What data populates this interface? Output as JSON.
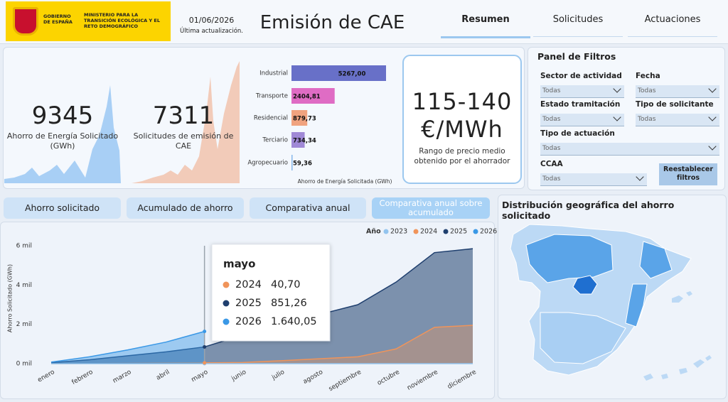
{
  "header": {
    "logo": {
      "government": "GOBIERNO DE ESPAÑA",
      "ministry": "MINISTERIO PARA LA TRANSICIÓN ECOLÓGICA Y EL RETO DEMOGRÁFICO"
    },
    "date": "01/06/2026",
    "date_caption": "Última actualización.",
    "title": "Emisión de CAE",
    "tabs": [
      "Resumen",
      "Solicitudes",
      "Actuaciones"
    ]
  },
  "kpis": [
    {
      "value": 9345,
      "label": "Ahorro de Energía Solicitado (GWh)"
    },
    {
      "value": 7311,
      "label": "Solicitudes de emisión de CAE"
    }
  ],
  "sector_chart": {
    "type": "bar",
    "orientation": "horizontal",
    "categories": [
      "Industrial",
      "Transporte",
      "Residencial",
      "Terciario",
      "Agropecuario"
    ],
    "values": [
      5267.0,
      2404.81,
      879.73,
      734.34,
      59.36
    ],
    "value_labels": [
      "5267,00",
      "2404,81",
      "879,73",
      "734,34",
      "59,36"
    ],
    "colors": [
      "#6870c8",
      "#df6cc4",
      "#f0a37f",
      "#a089d6",
      "#86b8ea"
    ],
    "x_label": "Ahorro de Energía Solicitada (GWh)"
  },
  "price_card": {
    "value": "115-140 €/MWh",
    "caption": "Rango de precio medio obtenido por el ahorrador"
  },
  "filters": {
    "title": "Panel de Filtros",
    "fields": [
      {
        "label": "Sector de actividad",
        "value": "Todas"
      },
      {
        "label": "Fecha",
        "value": "Todas"
      },
      {
        "label": "Estado tramitación",
        "value": "Todas"
      },
      {
        "label": "Tipo de solicitante",
        "value": "Todas"
      },
      {
        "label": "Tipo de actuación",
        "value": "Todas"
      },
      {
        "label": "CCAA",
        "value": "Todas"
      }
    ],
    "reset_button": "Reestablecer filtros"
  },
  "chart_tabs": [
    "Ahorro solicitado",
    "Acumulado de ahorro",
    "Comparativa anual",
    "Comparativa anual sobre acumulado"
  ],
  "savings_chart": {
    "type": "area",
    "y_label": "Ahorro Solicitado (GWh)",
    "legend_title": "Año",
    "categories": [
      "enero",
      "febrero",
      "marzo",
      "abril",
      "mayo",
      "junio",
      "julio",
      "agosto",
      "septiembre",
      "octubre",
      "noviembre",
      "diciembre"
    ],
    "series": [
      {
        "name": "2023",
        "color": "#93c4ee",
        "values": [
          0,
          0,
          0,
          0,
          0,
          0,
          0,
          0,
          0,
          0,
          0,
          0
        ]
      },
      {
        "name": "2024",
        "color": "#f0945a",
        "values": [
          0,
          10,
          20,
          30,
          40.7,
          60,
          150,
          250,
          350,
          750,
          1850,
          1950
        ]
      },
      {
        "name": "2025",
        "color": "#1f3f6e",
        "values": [
          50,
          200,
          400,
          600,
          851.26,
          1450,
          2000,
          2500,
          3000,
          4150,
          5650,
          5850
        ]
      },
      {
        "name": "2026",
        "color": "#3a98e6",
        "values": [
          80,
          350,
          700,
          1100,
          1640.05,
          null,
          null,
          null,
          null,
          null,
          null,
          null
        ]
      }
    ],
    "ylim": [
      0,
      6000
    ],
    "yticks": [
      {
        "value": 0,
        "label": "0 mil"
      },
      {
        "value": 2000,
        "label": "2 mil"
      },
      {
        "value": 4000,
        "label": "4 mil"
      },
      {
        "value": 6000,
        "label": "6 mil"
      }
    ],
    "grid": false,
    "tooltip": {
      "title": "mayo",
      "rows": [
        {
          "name": "2024",
          "value": "40,70"
        },
        {
          "name": "2025",
          "value": "851,26"
        },
        {
          "name": "2026",
          "value": "1.640,05"
        }
      ]
    }
  },
  "map": {
    "title": "Distribución geográfica del ahorro solicitado"
  }
}
